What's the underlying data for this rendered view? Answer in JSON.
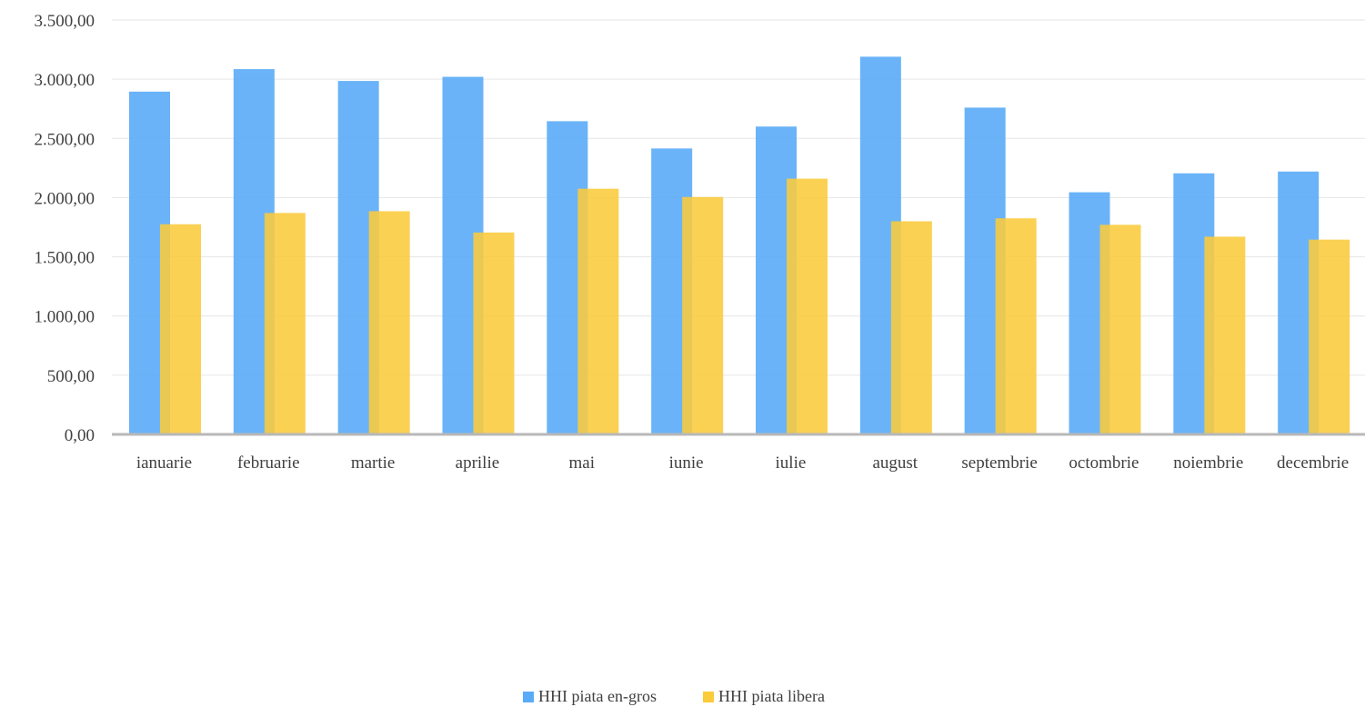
{
  "chart_data": {
    "type": "bar",
    "title": "",
    "xlabel": "",
    "ylabel": "",
    "ylim": [
      0,
      3500
    ],
    "yticks": [
      0,
      500,
      1000,
      1500,
      2000,
      2500,
      3000,
      3500
    ],
    "ytick_labels": [
      "0,00",
      "500,00",
      "1.000,00",
      "1.500,00",
      "2.000,00",
      "2.500,00",
      "3.000,00",
      "3.500,00"
    ],
    "grid": true,
    "legend_position": "bottom",
    "categories": [
      "ianuarie",
      "februarie",
      "martie",
      "aprilie",
      "mai",
      "iunie",
      "iulie",
      "august",
      "septembrie",
      "octombrie",
      "noiembrie",
      "decembrie"
    ],
    "series": [
      {
        "name": "HHI piata en-gros",
        "color": "#5aabf7",
        "values": [
          2895,
          3085,
          2985,
          3020,
          2645,
          2415,
          2600,
          3190,
          2760,
          2045,
          2205,
          2220
        ]
      },
      {
        "name": "HHI piata libera",
        "color": "#fbcb3c",
        "values": [
          1775,
          1870,
          1885,
          1705,
          2075,
          2005,
          2160,
          1800,
          1825,
          1770,
          1670,
          1645
        ]
      }
    ]
  }
}
